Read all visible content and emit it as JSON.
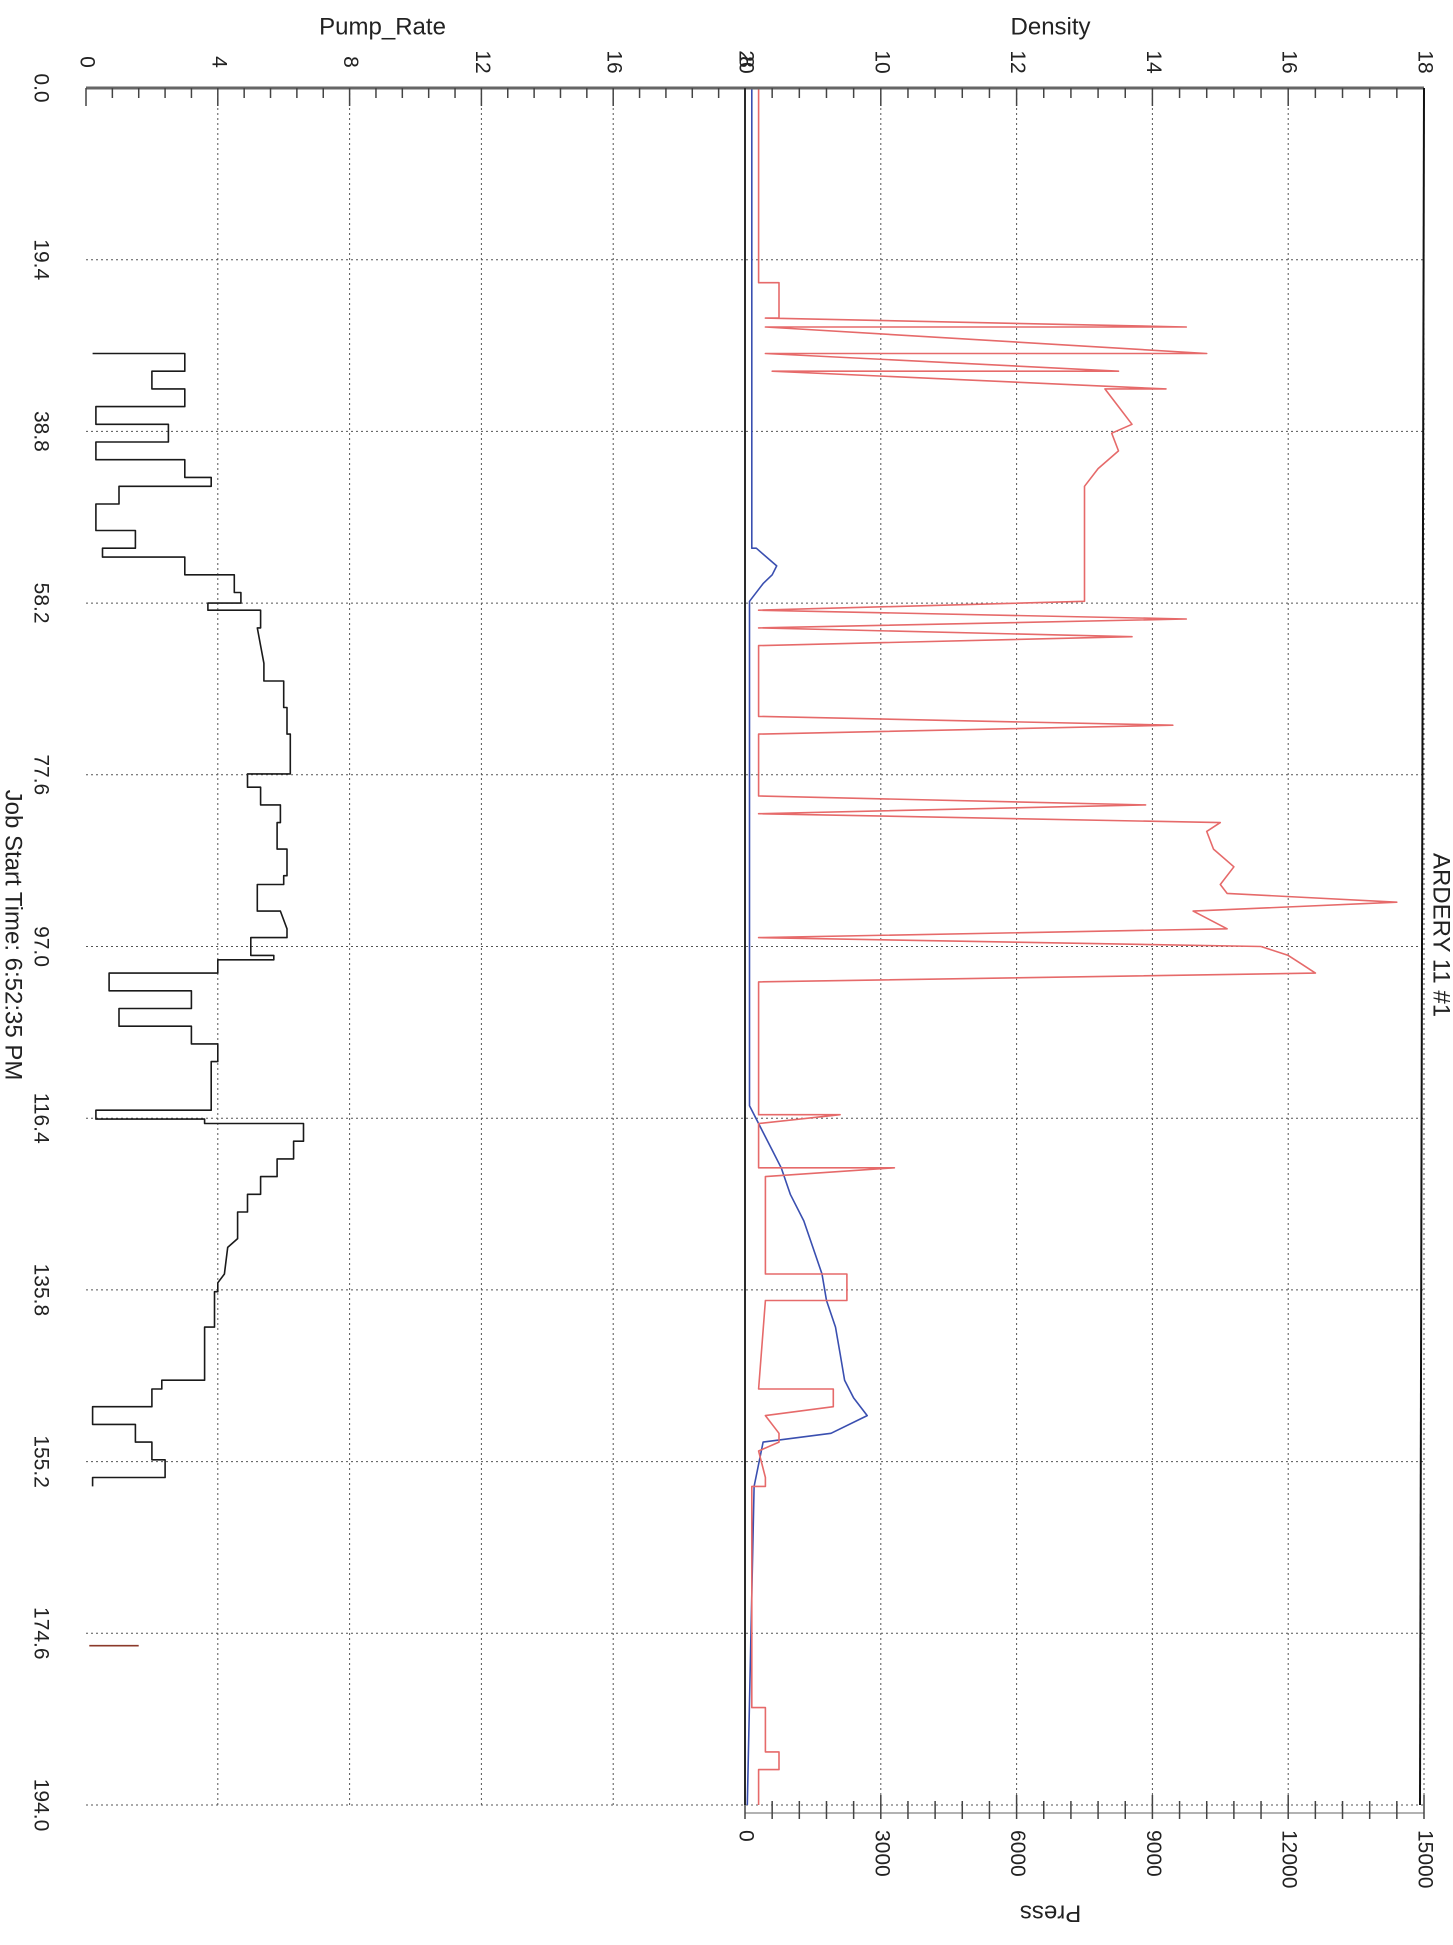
{
  "chart_data": {
    "type": "line",
    "title": "ARDERY 11 #1",
    "footer": "Job Start Time: 6:52:35 PM",
    "x_axis": {
      "label": "",
      "range": [
        0,
        194
      ],
      "ticks": [
        "0.0",
        "19.4",
        "38.8",
        "58.2",
        "77.6",
        "97.0",
        "116.4",
        "135.8",
        "155.2",
        "174.6",
        "194.0"
      ]
    },
    "panels": [
      {
        "label": "Pump_Rate",
        "color": "#1a1a1a",
        "range": [
          0,
          20
        ],
        "ticks": [
          "0",
          "4",
          "8",
          "12",
          "16",
          "20"
        ],
        "series": [
          {
            "label": "Pump_Rate",
            "color": "#1a1a1a",
            "points": [
              [
                30,
                0.2
              ],
              [
                30,
                3
              ],
              [
                32,
                3
              ],
              [
                32,
                2
              ],
              [
                34,
                2
              ],
              [
                34,
                3
              ],
              [
                36,
                3
              ],
              [
                36,
                0.3
              ],
              [
                38,
                0.3
              ],
              [
                38,
                2.5
              ],
              [
                40,
                2.5
              ],
              [
                40,
                0.3
              ],
              [
                42,
                0.3
              ],
              [
                42,
                3
              ],
              [
                44,
                3
              ],
              [
                44,
                3.8
              ],
              [
                45,
                3.8
              ],
              [
                45,
                1
              ],
              [
                47,
                1
              ],
              [
                47,
                0.3
              ],
              [
                50,
                0.3
              ],
              [
                50,
                1.5
              ],
              [
                52,
                1.5
              ],
              [
                52,
                0.5
              ],
              [
                53,
                0.5
              ],
              [
                53,
                3
              ],
              [
                55,
                3
              ],
              [
                55,
                4.5
              ],
              [
                57,
                4.5
              ],
              [
                57,
                4.7
              ],
              [
                58.2,
                4.7
              ],
              [
                58.2,
                3.7
              ],
              [
                59,
                3.7
              ],
              [
                59,
                5.3
              ],
              [
                61,
                5.3
              ],
              [
                61,
                5.2
              ],
              [
                63,
                5.3
              ],
              [
                65,
                5.4
              ],
              [
                67,
                5.4
              ],
              [
                67,
                6
              ],
              [
                70,
                6
              ],
              [
                70,
                6.1
              ],
              [
                73,
                6.1
              ],
              [
                73,
                6.2
              ],
              [
                77.5,
                6.2
              ],
              [
                77.5,
                4.9
              ],
              [
                79,
                4.9
              ],
              [
                79,
                5.3
              ],
              [
                81,
                5.3
              ],
              [
                81,
                5.9
              ],
              [
                83,
                5.9
              ],
              [
                83,
                5.8
              ],
              [
                86,
                5.8
              ],
              [
                86,
                6.1
              ],
              [
                89,
                6.1
              ],
              [
                89,
                6
              ],
              [
                90,
                6
              ],
              [
                90,
                5.2
              ],
              [
                93,
                5.2
              ],
              [
                93,
                5.9
              ],
              [
                95,
                6.1
              ],
              [
                96,
                6.1
              ],
              [
                96,
                5
              ],
              [
                98,
                5
              ],
              [
                98,
                5.7
              ],
              [
                98.5,
                5.7
              ],
              [
                98.5,
                4
              ],
              [
                100,
                4
              ],
              [
                100,
                0.7
              ],
              [
                102,
                0.7
              ],
              [
                102,
                3.2
              ],
              [
                104,
                3.2
              ],
              [
                104,
                1
              ],
              [
                106,
                1
              ],
              [
                106,
                3.2
              ],
              [
                108,
                3.2
              ],
              [
                108,
                4
              ],
              [
                110,
                4
              ],
              [
                110,
                3.8
              ],
              [
                115.5,
                3.8
              ],
              [
                115.5,
                0.3
              ],
              [
                116.5,
                0.3
              ],
              [
                116.5,
                3.6
              ],
              [
                117,
                3.6
              ],
              [
                117,
                6.6
              ],
              [
                119,
                6.6
              ],
              [
                119,
                6.3
              ],
              [
                121,
                6.3
              ],
              [
                121,
                5.8
              ],
              [
                123,
                5.8
              ],
              [
                123,
                5.3
              ],
              [
                125,
                5.3
              ],
              [
                125,
                4.9
              ],
              [
                127,
                4.9
              ],
              [
                127,
                4.6
              ],
              [
                130,
                4.6
              ],
              [
                131,
                4.3
              ],
              [
                134,
                4.2
              ],
              [
                135,
                4
              ],
              [
                136,
                4
              ],
              [
                136,
                3.9
              ],
              [
                140,
                3.9
              ],
              [
                140,
                3.6
              ],
              [
                146,
                3.6
              ],
              [
                146,
                2.3
              ],
              [
                147,
                2.3
              ],
              [
                147,
                2
              ],
              [
                149,
                2
              ],
              [
                149,
                0.2
              ],
              [
                151,
                0.2
              ],
              [
                151,
                1.5
              ],
              [
                153,
                1.5
              ],
              [
                153,
                2
              ],
              [
                155,
                2
              ],
              [
                155,
                2.4
              ],
              [
                157,
                2.4
              ],
              [
                157,
                0.2
              ],
              [
                158,
                0.2
              ]
            ]
          },
          {
            "label": "Pump_Rate",
            "color": "#8b3a2a",
            "points": [
              [
                176,
                0.1
              ],
              [
                176,
                1.6
              ]
            ]
          }
        ]
      },
      {
        "label": "Density",
        "color": "#e66a6a",
        "range": [
          8,
          18
        ],
        "ticks": [
          "8",
          "10",
          "12",
          "14",
          "16",
          "18"
        ],
        "secondary_label": "Press",
        "secondary_color": "#3a4fb0",
        "secondary_range": [
          0,
          15000
        ],
        "secondary_ticks": [
          "0",
          "3000",
          "6000",
          "9000",
          "12000",
          "15000"
        ],
        "series": [
          {
            "label": "Press",
            "color": "#3a4fb0",
            "points": [
              [
                0,
                150
              ],
              [
                52,
                150
              ],
              [
                52,
                250
              ],
              [
                54,
                700
              ],
              [
                55,
                600
              ],
              [
                56,
                400
              ],
              [
                58,
                100
              ],
              [
                100,
                100
              ],
              [
                115,
                100
              ],
              [
                117,
                300
              ],
              [
                118,
                400
              ],
              [
                120,
                600
              ],
              [
                122,
                800
              ],
              [
                125,
                1000
              ],
              [
                128,
                1300
              ],
              [
                131,
                1500
              ],
              [
                134,
                1700
              ],
              [
                137,
                1800
              ],
              [
                140,
                2000
              ],
              [
                143,
                2100
              ],
              [
                146,
                2200
              ],
              [
                148,
                2400
              ],
              [
                150,
                2700
              ],
              [
                152,
                1900
              ],
              [
                153,
                400
              ],
              [
                158,
                200
              ],
              [
                194,
                50
              ]
            ]
          },
          {
            "label": "Density",
            "color": "#e66a6a",
            "points": [
              [
                0,
                8.2
              ],
              [
                22,
                8.2
              ],
              [
                22,
                8.5
              ],
              [
                26,
                8.5
              ],
              [
                26,
                8.3
              ],
              [
                27,
                14.5
              ],
              [
                27,
                8.3
              ],
              [
                30,
                14.8
              ],
              [
                30,
                8.3
              ],
              [
                32,
                13.5
              ],
              [
                32,
                8.4
              ],
              [
                34,
                14.2
              ],
              [
                34,
                13.3
              ],
              [
                36,
                13.5
              ],
              [
                38,
                13.7
              ],
              [
                39,
                13.4
              ],
              [
                41,
                13.5
              ],
              [
                43,
                13.2
              ],
              [
                45,
                13
              ],
              [
                47,
                13
              ],
              [
                49,
                13
              ],
              [
                51,
                13
              ],
              [
                53,
                13
              ],
              [
                55,
                13
              ],
              [
                57,
                13
              ],
              [
                58,
                13
              ],
              [
                59,
                8.2
              ],
              [
                60,
                14.5
              ],
              [
                61,
                8.2
              ],
              [
                62,
                13.7
              ],
              [
                63,
                8.2
              ],
              [
                71,
                8.2
              ],
              [
                72,
                14.3
              ],
              [
                73,
                8.2
              ],
              [
                80,
                8.2
              ],
              [
                81,
                13.9
              ],
              [
                82,
                8.2
              ],
              [
                83,
                15
              ],
              [
                84,
                14.8
              ],
              [
                86,
                14.9
              ],
              [
                88,
                15.2
              ],
              [
                90,
                15
              ],
              [
                91,
                15.1
              ],
              [
                92,
                17.6
              ],
              [
                93,
                14.6
              ],
              [
                95,
                15.1
              ],
              [
                96,
                8.2
              ],
              [
                97,
                15.6
              ],
              [
                98,
                16
              ],
              [
                99,
                16.2
              ],
              [
                100,
                16.4
              ],
              [
                101,
                8.2
              ],
              [
                116,
                8.2
              ],
              [
                116,
                9.4
              ],
              [
                117,
                8.2
              ],
              [
                122,
                8.2
              ],
              [
                122,
                10.2
              ],
              [
                123,
                8.3
              ],
              [
                134,
                8.3
              ],
              [
                134,
                9.5
              ],
              [
                137,
                9.5
              ],
              [
                137,
                8.3
              ],
              [
                147,
                8.2
              ],
              [
                147,
                9.3
              ],
              [
                149,
                9.3
              ],
              [
                150,
                8.3
              ],
              [
                152,
                8.5
              ],
              [
                153,
                8.5
              ],
              [
                154,
                8.2
              ],
              [
                157,
                8.3
              ],
              [
                158,
                8.3
              ],
              [
                158,
                8.1
              ],
              [
                183,
                8.1
              ],
              [
                183,
                8.3
              ],
              [
                188,
                8.3
              ],
              [
                188,
                8.5
              ],
              [
                190,
                8.5
              ],
              [
                190,
                8.2
              ],
              [
                194,
                8.2
              ]
            ]
          }
        ]
      }
    ]
  }
}
